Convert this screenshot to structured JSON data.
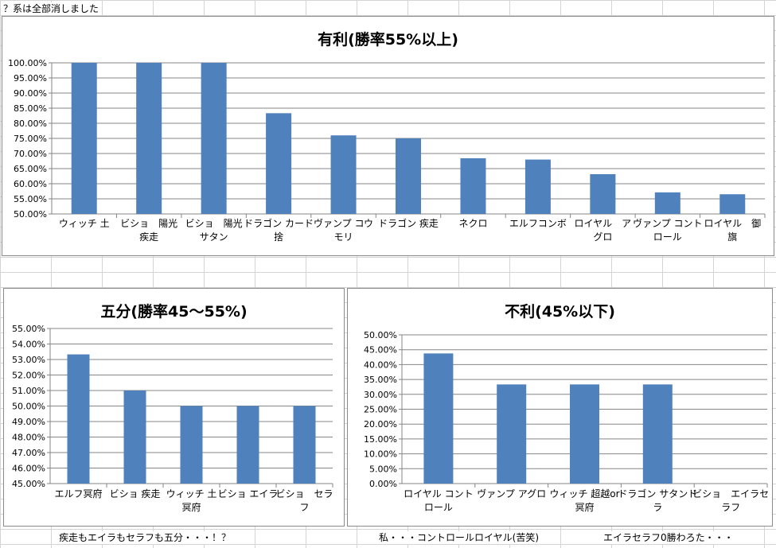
{
  "sheet": {
    "top_note": "？系は全部消しました",
    "bottom_notes": [
      "疾走もエイラもセラフも五分・・・！？",
      "私・・・コントロールロイヤル(苦笑)",
      "エイラセラフ0勝わろた・・・"
    ]
  },
  "colors": {
    "bar": "#4f81bd",
    "gridline": "#868686",
    "axis": "#868686"
  },
  "chart_data": [
    {
      "type": "bar",
      "title": "有利(勝率55%以上)",
      "categories": [
        [
          "ウィッチ 土"
        ],
        [
          "ビショ　陽光",
          "疾走"
        ],
        [
          "ビショ　陽光",
          "サタン"
        ],
        [
          "ドラゴン カード",
          "捨"
        ],
        [
          "ヴァンプ コウ",
          "モリ"
        ],
        [
          "ドラゴン 疾走"
        ],
        [
          "ネクロ"
        ],
        [
          "エルフコンボ"
        ],
        [
          "ロイヤル　ア",
          "グロ"
        ],
        [
          "ヴァンプ コント",
          "ロール"
        ],
        [
          "ロイヤル　御",
          "旗"
        ]
      ],
      "values": [
        100,
        100,
        100,
        83.33,
        76,
        75,
        68.42,
        68,
        63.16,
        57.14,
        56.52
      ],
      "ylim": [
        50,
        100
      ],
      "ystep": 5,
      "tick_labels": [
        "50.00%",
        "55.00%",
        "60.00%",
        "65.00%",
        "70.00%",
        "75.00%",
        "80.00%",
        "85.00%",
        "90.00%",
        "95.00%",
        "100.00%"
      ],
      "grid": true,
      "legend": "none"
    },
    {
      "type": "bar",
      "title": "五分(勝率45～55%)",
      "categories": [
        [
          "エルフ冥府"
        ],
        [
          "ビショ 疾走"
        ],
        [
          "ウィッチ 土",
          "冥府"
        ],
        [
          "ビショ エイラ"
        ],
        [
          "ビショ　セラ",
          "フ"
        ]
      ],
      "values": [
        53.33,
        51,
        50,
        50,
        50
      ],
      "ylim": [
        45,
        55
      ],
      "ystep": 1,
      "tick_labels": [
        "45.00%",
        "46.00%",
        "47.00%",
        "48.00%",
        "49.00%",
        "50.00%",
        "51.00%",
        "52.00%",
        "53.00%",
        "54.00%",
        "55.00%"
      ],
      "grid": true,
      "legend": "none"
    },
    {
      "type": "bar",
      "title": "不利(45%以下)",
      "categories": [
        [
          "ロイヤル コント",
          "ロール"
        ],
        [
          "ヴァンプ アグロ"
        ],
        [
          "ウィッチ 超越or",
          "冥府"
        ],
        [
          "ドラゴン サタンド",
          "ラ"
        ],
        [
          "ビショ　エイラセ",
          "ラフ"
        ]
      ],
      "values": [
        43.75,
        33.33,
        33.33,
        33.33,
        0
      ],
      "ylim": [
        0,
        50
      ],
      "ystep": 5,
      "tick_labels": [
        "0.00%",
        "5.00%",
        "10.00%",
        "15.00%",
        "20.00%",
        "25.00%",
        "30.00%",
        "35.00%",
        "40.00%",
        "45.00%",
        "50.00%"
      ],
      "grid": true,
      "legend": "none"
    }
  ]
}
